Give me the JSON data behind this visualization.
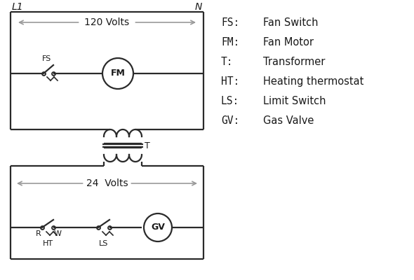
{
  "bg_color": "#ffffff",
  "line_color": "#2a2a2a",
  "gray_color": "#999999",
  "text_color": "#1a1a1a",
  "legend": [
    [
      "FS:",
      "Fan Switch"
    ],
    [
      "FM:",
      "Fan Motor"
    ],
    [
      "T:",
      "Transformer"
    ],
    [
      "HT:",
      "Heating thermostat"
    ],
    [
      "LS:",
      "Limit Switch"
    ],
    [
      "GV:",
      "Gas Valve"
    ]
  ],
  "L1_label": "L1",
  "N_label": "N",
  "v120_label": "120 Volts",
  "v24_label": "24  Volts",
  "T_label": "T"
}
